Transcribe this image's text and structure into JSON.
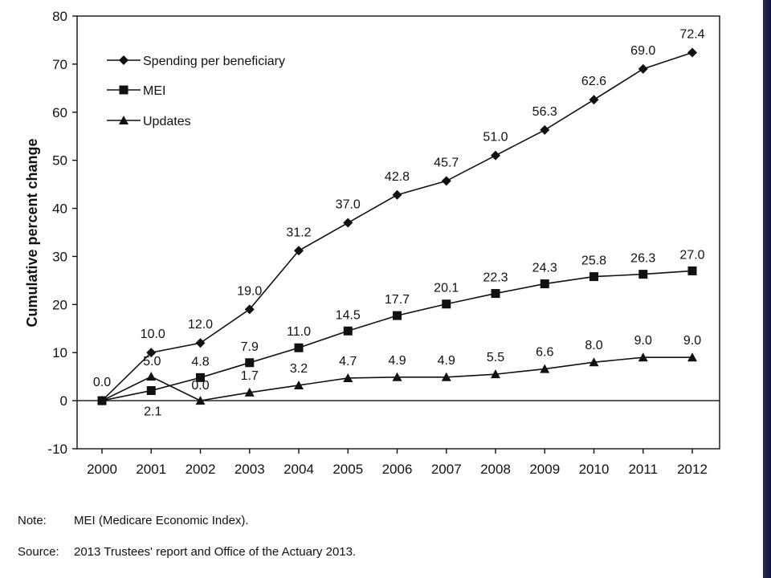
{
  "chart_data": {
    "type": "line",
    "ylabel": "Cumulative percent change",
    "xlabel": "",
    "ylim": [
      -10,
      80
    ],
    "yticks": [
      -10,
      0,
      10,
      20,
      30,
      40,
      50,
      60,
      70,
      80
    ],
    "categories": [
      "2000",
      "2001",
      "2002",
      "2003",
      "2004",
      "2005",
      "2006",
      "2007",
      "2008",
      "2009",
      "2010",
      "2011",
      "2012"
    ],
    "grid": false,
    "legend_position": "top-left",
    "series": [
      {
        "name": "Spending per beneficiary",
        "marker": "diamond",
        "values": [
          0.0,
          10.0,
          12.0,
          19.0,
          31.2,
          37.0,
          42.8,
          45.7,
          51.0,
          56.3,
          62.6,
          69.0,
          72.4
        ],
        "labels": [
          "0.0",
          "10.0",
          "12.0",
          "19.0",
          "31.2",
          "37.0",
          "42.8",
          "45.7",
          "51.0",
          "56.3",
          "62.6",
          "69.0",
          "72.4"
        ]
      },
      {
        "name": "MEI",
        "marker": "square",
        "values": [
          0.0,
          2.1,
          4.8,
          7.9,
          11.0,
          14.5,
          17.7,
          20.1,
          22.3,
          24.3,
          25.8,
          26.3,
          27.0
        ],
        "labels": [
          "",
          "2.1",
          "4.8",
          "7.9",
          "11.0",
          "14.5",
          "17.7",
          "20.1",
          "22.3",
          "24.3",
          "25.8",
          "26.3",
          "27.0"
        ]
      },
      {
        "name": "Updates",
        "marker": "triangle",
        "values": [
          0.0,
          5.0,
          0.0,
          1.7,
          3.2,
          4.7,
          4.9,
          4.9,
          5.5,
          6.6,
          8.0,
          9.0,
          9.0
        ],
        "labels": [
          "",
          "5.0",
          "0.0",
          "1.7",
          "3.2",
          "4.7",
          "4.9",
          "4.9",
          "5.5",
          "6.6",
          "8.0",
          "9.0",
          "9.0"
        ]
      }
    ]
  },
  "notes": {
    "note_label": "Note:",
    "note_text": "MEI (Medicare Economic Index).",
    "source_label": "Source:",
    "source_text": "2013 Trustees' report and Office of the Actuary 2013."
  }
}
